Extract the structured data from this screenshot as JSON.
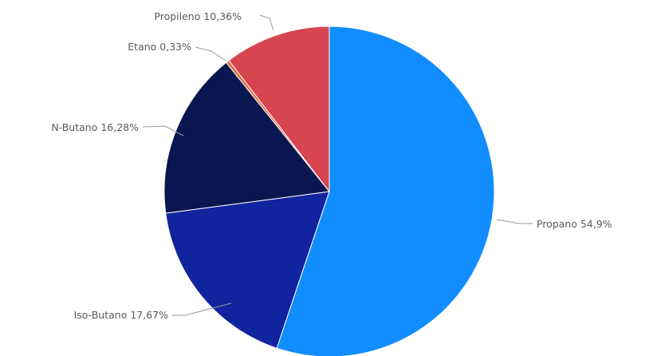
{
  "chart_data": {
    "type": "pie",
    "title": "",
    "slices": [
      {
        "label": "Propano 54,9%",
        "category": "Propano",
        "value": 54.9,
        "color": "#118DFF"
      },
      {
        "label": "Iso-Butano 17,67%",
        "category": "Iso-Butano",
        "value": 17.67,
        "color": "#12239E"
      },
      {
        "label": "N-Butano 16,28%",
        "category": "N-Butano",
        "value": 16.28,
        "color": "#0A1650"
      },
      {
        "label": "Etano 0,33%",
        "category": "Etano",
        "value": 0.33,
        "color": "#E66C37"
      },
      {
        "label": "Propileno 10,36%",
        "category": "Propileno",
        "value": 10.36,
        "color": "#D64550"
      }
    ],
    "start_angle_deg": 0,
    "direction": "clockwise",
    "legend": "none",
    "data_labels": "outside"
  }
}
